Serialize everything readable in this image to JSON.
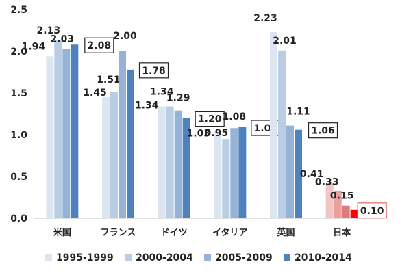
{
  "chart_data": {
    "type": "bar",
    "categories": [
      "米国",
      "フランス",
      "ドイツ",
      "イタリア",
      "英国",
      "日本"
    ],
    "series": [
      {
        "name": "1995-1999",
        "values": [
          1.94,
          1.45,
          1.34,
          1.03,
          2.23,
          0.41
        ],
        "color": "#dce6f1"
      },
      {
        "name": "2000-2004",
        "values": [
          2.13,
          1.51,
          1.34,
          0.95,
          2.01,
          0.33
        ],
        "color": "#b9cde5"
      },
      {
        "name": "2005-2009",
        "values": [
          2.03,
          2.0,
          1.29,
          1.08,
          1.11,
          0.15
        ],
        "color": "#95b3d7"
      },
      {
        "name": "2010-2014",
        "values": [
          2.08,
          1.78,
          1.2,
          1.09,
          1.06,
          0.1
        ],
        "color": "#4f81bd"
      }
    ],
    "japan_colors": [
      "#f2c4c4",
      "#e8a0a0",
      "#e07a7a",
      "#ff0000"
    ],
    "boxed_label_color": "#222222",
    "boxed_label_color_japan": "#e06666",
    "ylim": [
      0,
      2.5
    ],
    "yticks": [
      "0.0",
      "0.5",
      "1.0",
      "1.5",
      "2.0",
      "2.5"
    ],
    "grid": false,
    "legend_position": "bottom",
    "title": "",
    "xlabel": "",
    "ylabel": ""
  }
}
